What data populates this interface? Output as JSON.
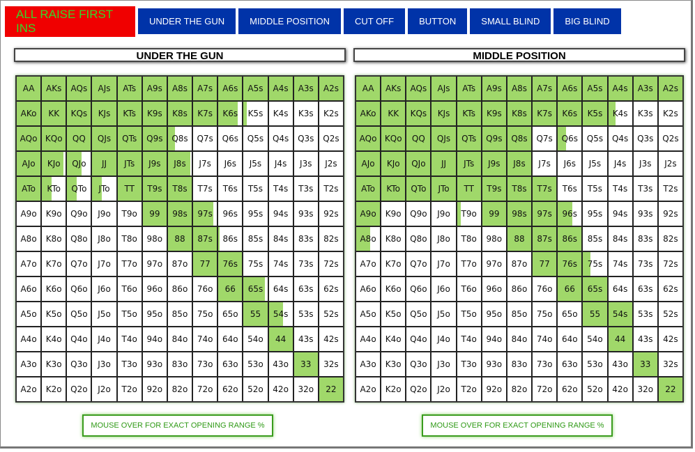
{
  "colors": {
    "tab_blue": "#0033a8",
    "tab_active_bg": "#f00000",
    "tab_active_text": "#37d62a",
    "range_fill": "#a0d86a",
    "button_border": "#3a9c1e"
  },
  "tabs": [
    {
      "label": "ALL RAISE FIRST INS",
      "active": true
    },
    {
      "label": "UNDER THE GUN"
    },
    {
      "label": "MIDDLE POSITION"
    },
    {
      "label": "CUT OFF"
    },
    {
      "label": "BUTTON"
    },
    {
      "label": "SMALL BLIND"
    },
    {
      "label": "BIG BLIND"
    }
  ],
  "ranks": [
    "A",
    "K",
    "Q",
    "J",
    "T",
    "9",
    "8",
    "7",
    "6",
    "5",
    "4",
    "3",
    "2"
  ],
  "panels": [
    {
      "title": "UNDER THE GUN",
      "button_label": "MOUSE OVER FOR EXACT OPENING RANGE %",
      "fill": [
        [
          100,
          100,
          100,
          100,
          100,
          100,
          100,
          100,
          100,
          100,
          100,
          100,
          100
        ],
        [
          100,
          100,
          100,
          100,
          100,
          100,
          100,
          100,
          80,
          15,
          0,
          0,
          0
        ],
        [
          100,
          100,
          100,
          100,
          100,
          100,
          30,
          0,
          0,
          0,
          0,
          0,
          0
        ],
        [
          100,
          90,
          60,
          100,
          100,
          100,
          95,
          0,
          0,
          0,
          0,
          0,
          0
        ],
        [
          100,
          40,
          40,
          40,
          100,
          100,
          100,
          0,
          0,
          0,
          0,
          0,
          0
        ],
        [
          0,
          0,
          0,
          0,
          0,
          100,
          100,
          85,
          0,
          0,
          0,
          0,
          0
        ],
        [
          0,
          0,
          0,
          0,
          0,
          0,
          100,
          100,
          5,
          0,
          0,
          0,
          0
        ],
        [
          0,
          0,
          0,
          0,
          0,
          0,
          0,
          100,
          100,
          0,
          0,
          0,
          0
        ],
        [
          0,
          0,
          0,
          0,
          0,
          0,
          0,
          0,
          100,
          90,
          0,
          0,
          0
        ],
        [
          0,
          0,
          0,
          0,
          0,
          0,
          0,
          0,
          0,
          100,
          60,
          0,
          0
        ],
        [
          0,
          0,
          0,
          0,
          0,
          0,
          0,
          0,
          0,
          0,
          100,
          0,
          0
        ],
        [
          0,
          0,
          0,
          0,
          0,
          0,
          0,
          0,
          0,
          0,
          0,
          100,
          0
        ],
        [
          0,
          0,
          0,
          0,
          0,
          0,
          0,
          0,
          0,
          0,
          0,
          0,
          100
        ]
      ]
    },
    {
      "title": "MIDDLE POSITION",
      "button_label": "MOUSE OVER FOR EXACT OPENING RANGE %",
      "fill": [
        [
          100,
          100,
          100,
          100,
          100,
          100,
          100,
          100,
          100,
          100,
          100,
          100,
          100
        ],
        [
          100,
          100,
          100,
          100,
          100,
          100,
          100,
          100,
          100,
          100,
          30,
          0,
          0
        ],
        [
          100,
          100,
          100,
          100,
          100,
          100,
          100,
          0,
          35,
          0,
          0,
          0,
          0
        ],
        [
          100,
          100,
          100,
          100,
          100,
          100,
          100,
          0,
          0,
          0,
          0,
          0,
          0
        ],
        [
          100,
          100,
          100,
          100,
          100,
          100,
          100,
          100,
          0,
          0,
          0,
          0,
          0
        ],
        [
          100,
          0,
          0,
          0,
          15,
          100,
          100,
          100,
          60,
          0,
          0,
          0,
          0
        ],
        [
          60,
          0,
          0,
          0,
          0,
          0,
          100,
          100,
          100,
          0,
          0,
          0,
          0
        ],
        [
          0,
          0,
          0,
          0,
          0,
          0,
          0,
          100,
          100,
          30,
          0,
          0,
          0
        ],
        [
          0,
          0,
          0,
          0,
          0,
          0,
          0,
          0,
          100,
          100,
          0,
          0,
          0
        ],
        [
          0,
          0,
          0,
          0,
          0,
          0,
          0,
          0,
          0,
          100,
          100,
          0,
          0
        ],
        [
          0,
          0,
          0,
          0,
          0,
          0,
          0,
          0,
          0,
          0,
          100,
          0,
          0
        ],
        [
          0,
          0,
          0,
          0,
          0,
          0,
          0,
          0,
          0,
          0,
          0,
          100,
          0
        ],
        [
          0,
          0,
          0,
          0,
          0,
          0,
          0,
          0,
          0,
          0,
          0,
          0,
          100
        ]
      ]
    }
  ]
}
